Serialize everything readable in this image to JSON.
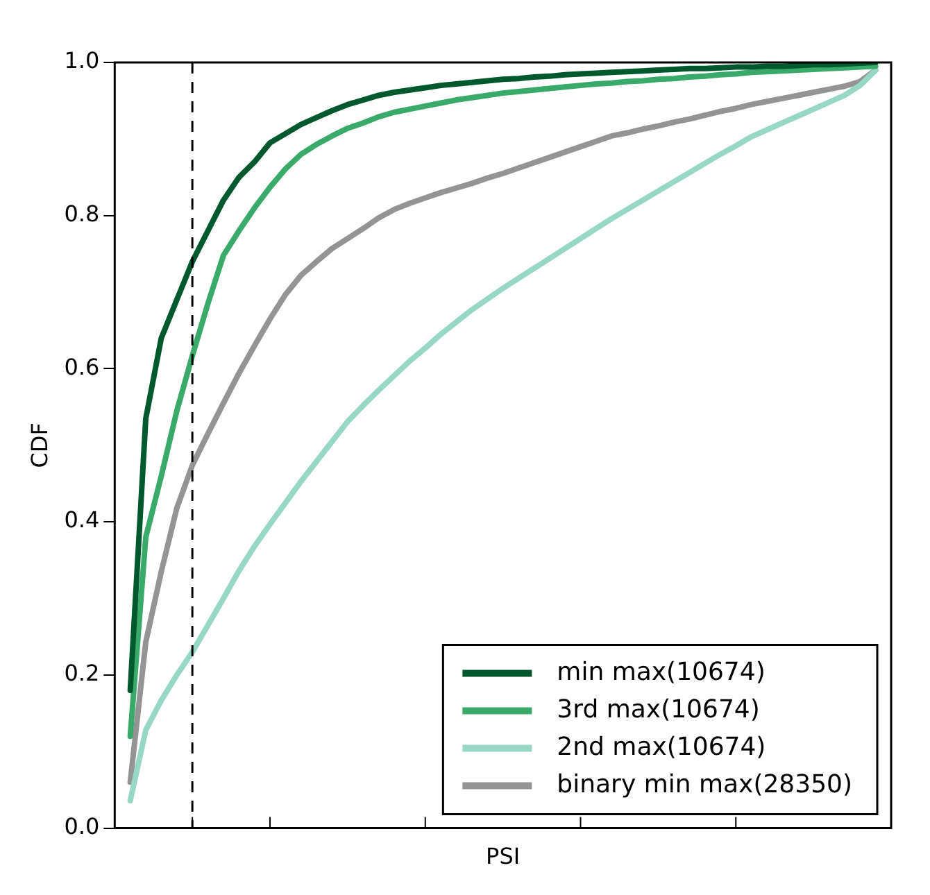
{
  "chart_data": {
    "type": "line",
    "xlabel": "PSI",
    "ylabel": "CDF",
    "categories": [
      null,
      null,
      null,
      null,
      null,
      null,
      null,
      null,
      null,
      null,
      null,
      null,
      null,
      null,
      null,
      null,
      null,
      null,
      null,
      null,
      null,
      null,
      null,
      null,
      null,
      null,
      null,
      null,
      null,
      null,
      null,
      null,
      null,
      null,
      null,
      null,
      null,
      null,
      null,
      null,
      null,
      null,
      null,
      null,
      null,
      null,
      null,
      null,
      null,
      null,
      null
    ],
    "ylim": [
      0,
      1
    ],
    "yticks": [
      {
        "value": 0,
        "label": "0.0"
      },
      {
        "value": 0.2,
        "label": "0.2"
      },
      {
        "value": 0.4,
        "label": "0.4"
      },
      {
        "value": 0.6,
        "label": "0.6"
      },
      {
        "value": 0.8,
        "label": "0.8"
      },
      {
        "value": 1,
        "label": "1.0"
      }
    ],
    "tick_labels": "y",
    "grid": false,
    "legend": "bottom right",
    "marker": "none",
    "line_style": "solid",
    "series": [
      {
        "name": "min max(10674)",
        "color": "#00592d",
        "values": [
          null,
          0.18,
          0.535,
          0.64,
          0.69,
          0.74,
          0.78,
          0.82,
          0.85,
          0.87,
          0.895,
          0.907,
          0.919,
          0.928,
          0.937,
          0.945,
          0.951,
          0.957,
          0.961,
          0.964,
          0.967,
          0.97,
          0.972,
          0.974,
          0.976,
          0.978,
          0.979,
          0.981,
          0.982,
          0.984,
          0.985,
          0.986,
          0.987,
          0.988,
          0.989,
          0.99,
          0.991,
          0.992,
          0.992,
          0.993,
          0.994,
          0.994,
          0.995,
          0.995,
          0.996,
          0.997,
          0.997,
          0.998,
          0.999,
          1.0,
          null
        ]
      },
      {
        "name": "3rd max(10674)",
        "color": "#3aaa6a",
        "values": [
          null,
          0.12,
          0.38,
          0.46,
          0.545,
          0.617,
          0.685,
          0.748,
          0.78,
          0.81,
          0.837,
          0.861,
          0.88,
          0.893,
          0.904,
          0.914,
          0.921,
          0.929,
          0.935,
          0.939,
          0.943,
          0.947,
          0.951,
          0.954,
          0.957,
          0.96,
          0.962,
          0.964,
          0.966,
          0.968,
          0.97,
          0.972,
          0.973,
          0.975,
          0.976,
          0.978,
          0.979,
          0.981,
          0.982,
          0.984,
          0.985,
          0.987,
          0.988,
          0.989,
          0.99,
          0.991,
          0.992,
          0.993,
          0.994,
          0.995,
          null
        ]
      },
      {
        "name": "2nd max(10674)",
        "color": "#97d7c5",
        "values": [
          null,
          0.036,
          0.128,
          0.167,
          0.2,
          0.23,
          0.265,
          0.3,
          0.336,
          0.368,
          0.397,
          0.425,
          0.453,
          0.479,
          0.505,
          0.531,
          0.552,
          0.572,
          0.591,
          0.61,
          0.627,
          0.645,
          0.661,
          0.677,
          0.691,
          0.705,
          0.718,
          0.731,
          0.744,
          0.757,
          0.77,
          0.783,
          0.796,
          0.808,
          0.82,
          0.832,
          0.844,
          0.856,
          0.868,
          0.88,
          0.891,
          0.903,
          0.912,
          0.921,
          0.93,
          0.939,
          0.948,
          0.957,
          0.97,
          0.99,
          null
        ]
      },
      {
        "name": "binary min max(28350)",
        "color": "#949494",
        "values": [
          null,
          0.06,
          0.243,
          0.335,
          0.418,
          0.474,
          0.515,
          0.555,
          0.594,
          0.63,
          0.665,
          0.697,
          0.722,
          0.74,
          0.757,
          0.77,
          0.783,
          0.797,
          0.808,
          0.816,
          0.823,
          0.83,
          0.836,
          0.842,
          0.849,
          0.855,
          0.862,
          0.869,
          0.876,
          0.883,
          0.89,
          0.897,
          0.904,
          0.908,
          0.913,
          0.917,
          0.922,
          0.926,
          0.931,
          0.936,
          0.94,
          0.945,
          0.949,
          0.953,
          0.957,
          0.961,
          0.965,
          0.969,
          0.975,
          0.99,
          null
        ]
      }
    ]
  }
}
